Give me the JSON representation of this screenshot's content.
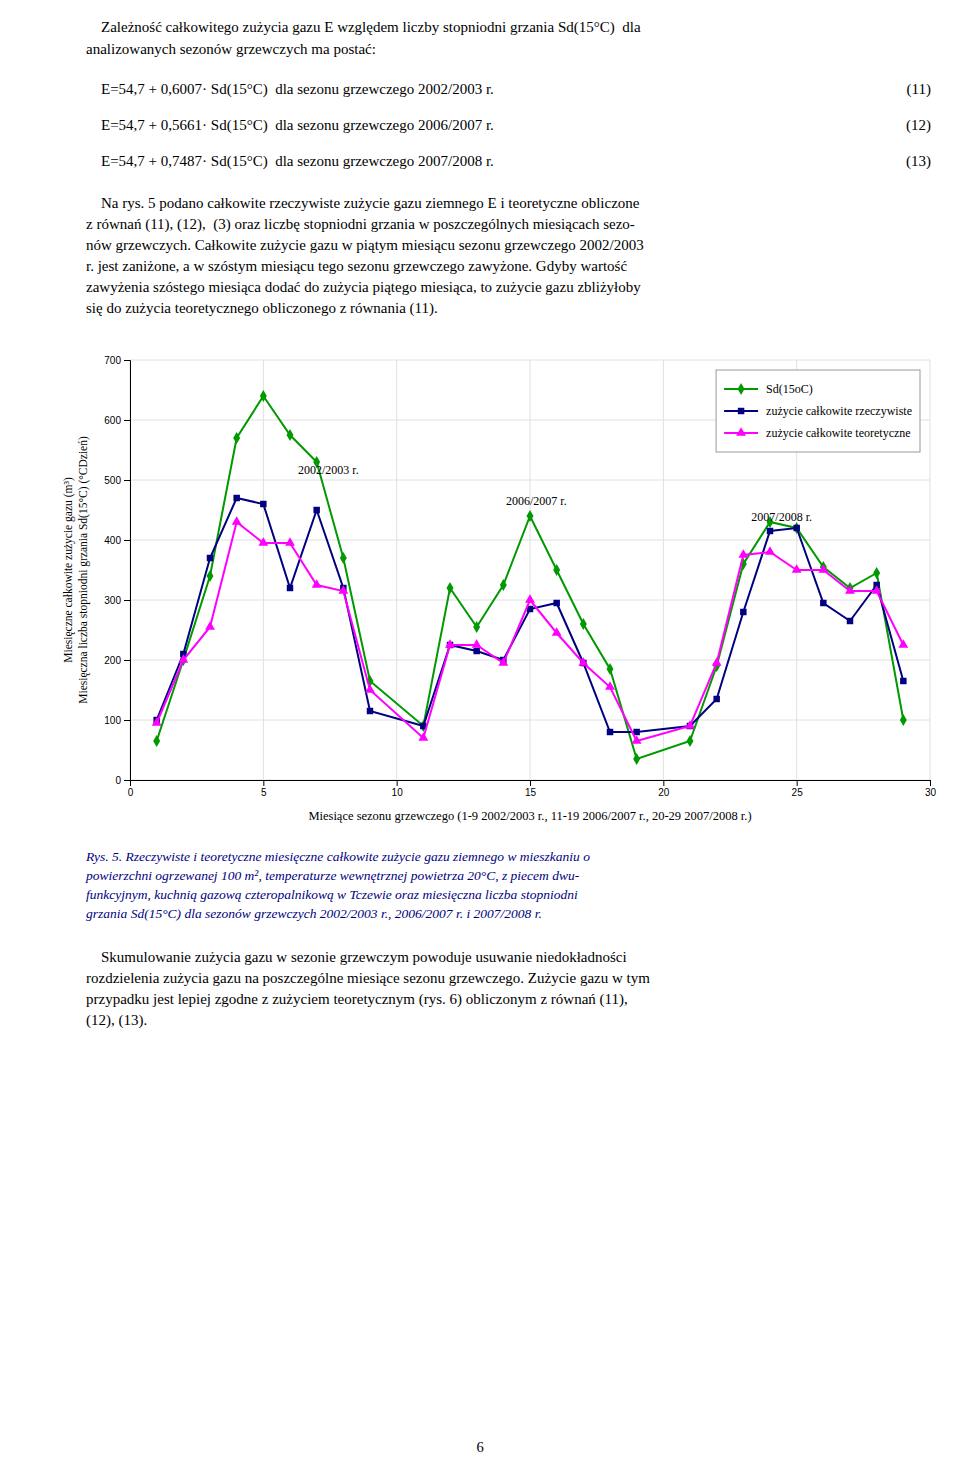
{
  "chart_data": {
    "type": "line",
    "xlabel": "Miesiące sezonu grzewczego (1-9 2002/2003 r., 11-19 2006/2007 r., 20-29 2007/2008 r.)",
    "ylabel": [
      "Miesięczne całkowite zużycie gazu (m³)",
      "Miesięczna liczba stopniodni grzania Sd(15°C) (°CDzień)"
    ],
    "x": [
      1,
      2,
      3,
      4,
      5,
      6,
      7,
      8,
      9,
      11,
      12,
      13,
      14,
      15,
      16,
      17,
      18,
      19,
      21,
      22,
      23,
      24,
      25,
      26,
      27,
      28,
      29
    ],
    "series": [
      {
        "name": "Sd(15oC)",
        "color": "#009900",
        "marker": "diamond",
        "values": [
          65,
          200,
          340,
          570,
          640,
          575,
          530,
          370,
          165,
          90,
          320,
          255,
          325,
          440,
          350,
          260,
          185,
          35,
          65,
          190,
          360,
          430,
          420,
          355,
          320,
          345,
          100
        ]
      },
      {
        "name": "zużycie całkowite rzeczywiste",
        "color": "#000080",
        "marker": "square",
        "values": [
          100,
          210,
          370,
          470,
          460,
          320,
          450,
          320,
          115,
          90,
          225,
          215,
          200,
          285,
          295,
          195,
          80,
          80,
          90,
          135,
          280,
          415,
          420,
          295,
          265,
          325,
          165
        ]
      },
      {
        "name": "zużycie całkowite teoretyczne",
        "color": "#FF00FF",
        "marker": "triangle",
        "values": [
          95,
          200,
          255,
          430,
          395,
          395,
          325,
          315,
          150,
          70,
          225,
          225,
          195,
          300,
          245,
          195,
          155,
          65,
          90,
          195,
          375,
          380,
          350,
          350,
          315,
          315,
          225
        ]
      }
    ],
    "annotations": [
      {
        "text": "2002/2003 r.",
        "x": 6.3,
        "y": 510
      },
      {
        "text": "2006/2007 r.",
        "x": 14.1,
        "y": 458
      },
      {
        "text": "2007/2008 r.",
        "x": 23.3,
        "y": 432
      }
    ],
    "xlim": [
      0,
      30
    ],
    "ylim": [
      0,
      700
    ],
    "xticks": [
      0,
      5,
      10,
      15,
      20,
      25,
      30
    ],
    "yticks": [
      0,
      100,
      200,
      300,
      400,
      500,
      600,
      700
    ],
    "grid": true,
    "legend": "upper right"
  },
  "page": {
    "text_top": [
      "    Zależność całkowitego zużycia gazu E względem liczby stopniodni grzania Sd(15°C)  dla",
      "analizowanych sezonów grzewczych ma postać:"
    ],
    "equations": [
      {
        "text": "    E=54,7 + 0,6007· Sd(15°C)  dla sezonu grzewczego 2002/2003 r.",
        "number": "(11)"
      },
      {
        "text": "    E=54,7 + 0,5661· Sd(15°C)  dla sezonu grzewczego 2006/2007 r.",
        "number": "(12)"
      },
      {
        "text": "    E=54,7 + 0,7487· Sd(15°C)  dla sezonu grzewczego 2007/2008 r.",
        "number": "(13)"
      }
    ],
    "paragraph_1": [
      "    Na rys. 5 podano całkowite rzeczywiste zużycie gazu ziemnego E i teoretyczne obliczone",
      "z równań (11), (12),  (3) oraz liczbę stopniodni grzania w poszczególnych miesiącach sezo-",
      "nów grzewczych. Całkowite zużycie gazu w piątym miesiącu sezonu grzewczego 2002/2003",
      "r. jest zaniżone, a w szóstym miesiącu tego sezonu grzewczego zawyżone. Gdyby wartość",
      "zawyżenia szóstego miesiąca dodać do zużycia piątego miesiąca, to zużycie gazu zbliżyłoby",
      "się do zużycia teoretycznego obliczonego z równania (11)."
    ],
    "caption": [
      "Rys. 5. Rzeczywiste i teoretyczne miesięczne całkowite zużycie gazu ziemnego w mieszkaniu o",
      "powierzchni ogrzewanej 100 m², temperaturze wewnętrznej powietrza 20°C, z piecem dwu-",
      "funkcyjnym, kuchnią gazową czteropalnikową w Tczewie oraz miesięczna liczba stopniodni",
      "grzania Sd(15°C) dla sezonów grzewczych 2002/2003 r., 2006/2007 r. i 2007/2008 r."
    ],
    "paragraph_2": [
      "    Skumulowanie zużycia gazu w sezonie grzewczym powoduje usuwanie niedokładności",
      "rozdzielenia zużycia gazu na poszczególne miesiące sezonu grzewczego. Zużycie gazu w tym",
      "przypadku jest lepiej zgodne z zużyciem teoretycznym (rys. 6) obliczonym z równań (11),",
      "(12), (13)."
    ],
    "page_number": "6"
  }
}
